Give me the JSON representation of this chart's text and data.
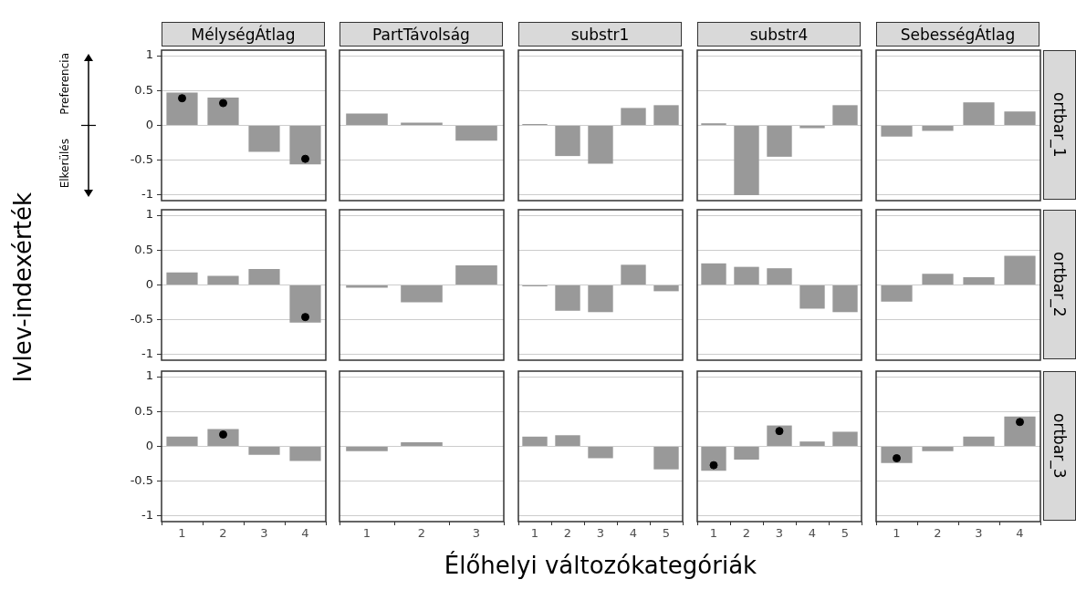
{
  "chart_data": [
    {
      "type": "bar",
      "title": "MélységÁtlag",
      "annotations": [
        "Preferencia",
        "Elkerülés"
      ],
      "categories": [
        "1",
        "2",
        "3",
        "4"
      ],
      "ylim": [
        -1.08,
        1.08
      ],
      "yticks": [
        -1,
        -0.5,
        0,
        0.5,
        1
      ],
      "grid": "y",
      "tick_labels": "y",
      "marker": "circle",
      "series": [
        {
          "color": "#999999",
          "values": [
            0.47,
            0.4,
            -0.38,
            -0.56
          ]
        },
        {
          "type": "scatter",
          "color": "#000000",
          "x": [
            "1",
            "2",
            "4"
          ],
          "values": [
            0.39,
            0.32,
            -0.48
          ]
        }
      ]
    },
    {
      "type": "bar",
      "title": "PartTávolság",
      "categories": [
        "1",
        "2",
        "3"
      ],
      "ylim": [
        -1.08,
        1.08
      ],
      "yticks": [
        -1,
        -0.5,
        0,
        0.5,
        1
      ],
      "grid": "y",
      "tick_labels": false,
      "series": [
        {
          "color": "#999999",
          "values": [
            0.17,
            0.04,
            -0.22
          ]
        }
      ]
    },
    {
      "type": "bar",
      "title": "substr1",
      "categories": [
        "1",
        "2",
        "3",
        "4",
        "5"
      ],
      "ylim": [
        -1.08,
        1.08
      ],
      "yticks": [
        -1,
        -0.5,
        0,
        0.5,
        1
      ],
      "grid": "y",
      "tick_labels": false,
      "series": [
        {
          "color": "#999999",
          "values": [
            0.02,
            -0.44,
            -0.55,
            0.25,
            0.29
          ]
        }
      ]
    },
    {
      "type": "bar",
      "title": "substr4",
      "categories": [
        "1",
        "2",
        "3",
        "4",
        "5"
      ],
      "ylim": [
        -1.08,
        1.08
      ],
      "yticks": [
        -1,
        -0.5,
        0,
        0.5,
        1
      ],
      "grid": "y",
      "tick_labels": false,
      "series": [
        {
          "color": "#999999",
          "values": [
            0.03,
            -1.0,
            -0.45,
            -0.04,
            0.29
          ]
        }
      ]
    },
    {
      "type": "bar",
      "title": "SebességÁtlag",
      "y2label": "ortbar_1",
      "categories": [
        "1",
        "2",
        "3",
        "4"
      ],
      "ylim": [
        -1.08,
        1.08
      ],
      "yticks": [
        -1,
        -0.5,
        0,
        0.5,
        1
      ],
      "grid": "y",
      "tick_labels": false,
      "series": [
        {
          "color": "#999999",
          "values": [
            -0.16,
            -0.08,
            0.33,
            0.2
          ]
        }
      ]
    },
    {
      "type": "bar",
      "ylabel": "Ivlev-indexérték",
      "categories": [
        "1",
        "2",
        "3",
        "4"
      ],
      "ylim": [
        -1.08,
        1.08
      ],
      "yticks": [
        -1,
        -0.5,
        0,
        0.5,
        1
      ],
      "grid": "y",
      "tick_labels": "y",
      "marker": "circle",
      "series": [
        {
          "color": "#999999",
          "values": [
            0.18,
            0.13,
            0.23,
            -0.54
          ]
        },
        {
          "type": "scatter",
          "color": "#000000",
          "x": [
            "4"
          ],
          "values": [
            -0.46
          ]
        }
      ]
    },
    {
      "type": "bar",
      "categories": [
        "1",
        "2",
        "3"
      ],
      "ylim": [
        -1.08,
        1.08
      ],
      "yticks": [
        -1,
        -0.5,
        0,
        0.5,
        1
      ],
      "grid": "y",
      "tick_labels": false,
      "series": [
        {
          "color": "#999999",
          "values": [
            -0.04,
            -0.25,
            0.28
          ]
        }
      ]
    },
    {
      "type": "bar",
      "categories": [
        "1",
        "2",
        "3",
        "4",
        "5"
      ],
      "ylim": [
        -1.08,
        1.08
      ],
      "yticks": [
        -1,
        -0.5,
        0,
        0.5,
        1
      ],
      "grid": "y",
      "tick_labels": false,
      "series": [
        {
          "color": "#999999",
          "values": [
            -0.02,
            -0.37,
            -0.39,
            0.29,
            -0.09
          ]
        }
      ]
    },
    {
      "type": "bar",
      "categories": [
        "1",
        "2",
        "3",
        "4",
        "5"
      ],
      "ylim": [
        -1.08,
        1.08
      ],
      "yticks": [
        -1,
        -0.5,
        0,
        0.5,
        1
      ],
      "grid": "y",
      "tick_labels": false,
      "series": [
        {
          "color": "#999999",
          "values": [
            0.31,
            0.26,
            0.24,
            -0.34,
            -0.39
          ]
        }
      ]
    },
    {
      "type": "bar",
      "y2label": "ortbar_2",
      "categories": [
        "1",
        "2",
        "3",
        "4"
      ],
      "ylim": [
        -1.08,
        1.08
      ],
      "yticks": [
        -1,
        -0.5,
        0,
        0.5,
        1
      ],
      "grid": "y",
      "tick_labels": false,
      "series": [
        {
          "color": "#999999",
          "values": [
            -0.24,
            0.16,
            0.11,
            0.42
          ]
        }
      ]
    },
    {
      "type": "bar",
      "categories": [
        "1",
        "2",
        "3",
        "4"
      ],
      "ylim": [
        -1.08,
        1.08
      ],
      "yticks": [
        -1,
        -0.5,
        0,
        0.5,
        1
      ],
      "grid": "y",
      "marker": "circle",
      "series": [
        {
          "color": "#999999",
          "values": [
            0.14,
            0.25,
            -0.12,
            -0.21
          ]
        },
        {
          "type": "scatter",
          "color": "#000000",
          "x": [
            "2"
          ],
          "values": [
            0.17
          ]
        }
      ]
    },
    {
      "type": "bar",
      "categories": [
        "1",
        "2",
        "3"
      ],
      "ylim": [
        -1.08,
        1.08
      ],
      "yticks": [
        -1,
        -0.5,
        0,
        0.5,
        1
      ],
      "grid": "y",
      "tick_labels": "x",
      "series": [
        {
          "color": "#999999",
          "values": [
            -0.07,
            0.06,
            0
          ]
        }
      ]
    },
    {
      "type": "bar",
      "xlabel": "Élőhelyi változókategóriák",
      "categories": [
        "1",
        "2",
        "3",
        "4",
        "5"
      ],
      "ylim": [
        -1.08,
        1.08
      ],
      "yticks": [
        -1,
        -0.5,
        0,
        0.5,
        1
      ],
      "grid": "y",
      "tick_labels": "x",
      "series": [
        {
          "color": "#999999",
          "values": [
            0.14,
            0.16,
            -0.17,
            0,
            -0.33
          ]
        }
      ]
    },
    {
      "type": "bar",
      "categories": [
        "1",
        "2",
        "3",
        "4",
        "5"
      ],
      "ylim": [
        -1.08,
        1.08
      ],
      "yticks": [
        -1,
        -0.5,
        0,
        0.5,
        1
      ],
      "grid": "y",
      "tick_labels": "x",
      "marker": "circle",
      "series": [
        {
          "color": "#999999",
          "values": [
            -0.35,
            -0.19,
            0.3,
            0.07,
            0.21
          ]
        },
        {
          "type": "scatter",
          "color": "#000000",
          "x": [
            "1",
            "3"
          ],
          "values": [
            -0.27,
            0.22
          ]
        }
      ]
    },
    {
      "type": "bar",
      "y2label": "ortbar_3",
      "categories": [
        "1",
        "2",
        "3",
        "4"
      ],
      "ylim": [
        -1.08,
        1.08
      ],
      "yticks": [
        -1,
        -0.5,
        0,
        0.5,
        1
      ],
      "grid": "y",
      "tick_labels": "x",
      "marker": "circle",
      "series": [
        {
          "color": "#999999",
          "values": [
            -0.24,
            -0.07,
            0.14,
            0.43
          ]
        },
        {
          "type": "scatter",
          "color": "#000000",
          "x": [
            "1",
            "4"
          ],
          "values": [
            -0.17,
            0.35
          ]
        }
      ]
    }
  ]
}
